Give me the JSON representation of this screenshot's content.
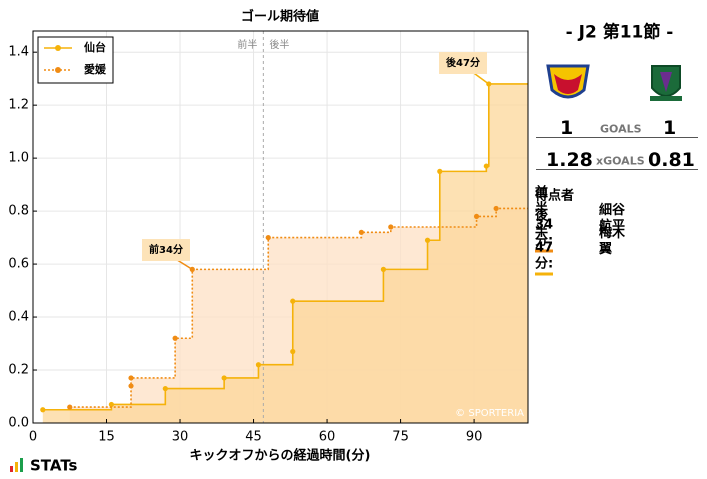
{
  "chart_data": {
    "type": "line",
    "step": true,
    "title": "ゴール期待値",
    "x_label": "キックオフからの経過時間(分)",
    "xlim": [
      0,
      101
    ],
    "xticks": [
      0,
      15,
      30,
      45,
      60,
      75,
      90
    ],
    "ylim": [
      0,
      1.48
    ],
    "yticks": [
      {
        "value": 0,
        "label": "0.0"
      },
      0.2,
      0.4,
      0.6,
      0.8,
      {
        "value": 1,
        "label": "1.0"
      },
      1.2,
      1.4
    ],
    "grid": true,
    "legend": "upper left",
    "halftime": {
      "x": 47,
      "labels": [
        "前半",
        "後半"
      ]
    },
    "series": [
      {
        "name": "仙台",
        "color": "#f5b20a",
        "fill": "#fcd79a",
        "line_style": "solid",
        "x": [
          2,
          16,
          27,
          39,
          46,
          53,
          53,
          71.5,
          80.5,
          83,
          92.5,
          93
        ],
        "values": [
          0.05,
          0.07,
          0.13,
          0.17,
          0.22,
          0.27,
          0.46,
          0.58,
          0.69,
          0.95,
          0.97,
          1.28
        ]
      },
      {
        "name": "愛媛",
        "color": "#f08c14",
        "fill": "#fde0c4",
        "line_style": "dotted",
        "x": [
          7.5,
          20,
          20,
          29,
          32.5,
          48,
          67,
          73,
          90.5,
          94.5
        ],
        "values": [
          0.06,
          0.14,
          0.17,
          0.32,
          0.58,
          0.7,
          0.72,
          0.74,
          0.78,
          0.81
        ]
      }
    ],
    "annotations": [
      "前34分",
      "後47分"
    ],
    "watermark": "© SPORTERIA"
  },
  "panel": {
    "match": "- J2 第11節 -",
    "goals_label": "GOALS",
    "home_goals": "1",
    "away_goals": "1",
    "xgoals_label": "xGOALS",
    "home_xg": "1.28",
    "away_xg": "0.81",
    "scorers_title": "得点者",
    "scorers": [
      {
        "time": "前半34分:",
        "name": "細谷　航平",
        "color": "#f08c14"
      },
      {
        "time": "後半47分:",
        "name": "梅木　翼",
        "color": "#f5b20a"
      }
    ]
  },
  "brand": "STATs"
}
